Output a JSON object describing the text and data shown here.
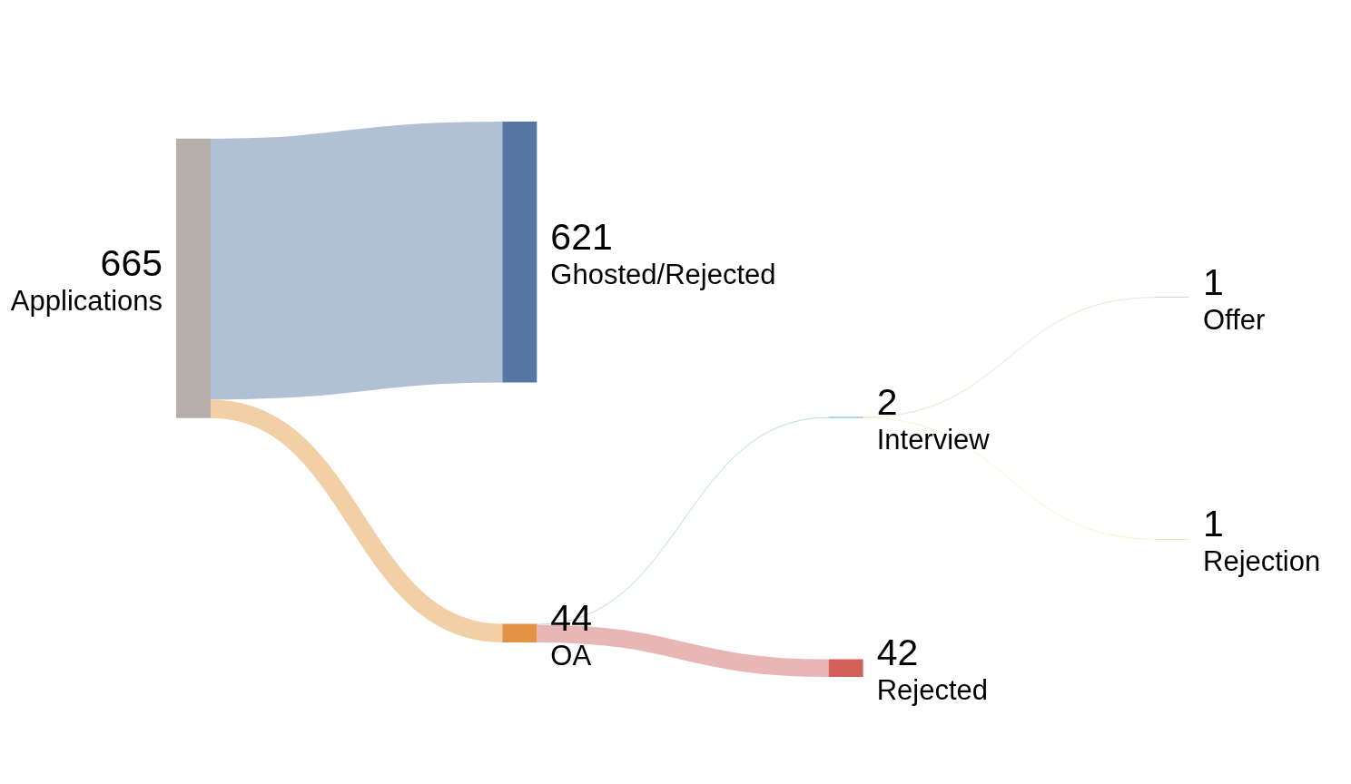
{
  "chart_data": {
    "type": "other",
    "categories": [
      "Applications",
      "Ghosted/Rejected",
      "OA",
      "Interview",
      "Rejected",
      "Offer",
      "Rejection"
    ],
    "values": [
      665,
      null,
      null,
      null,
      null,
      null,
      null
    ],
    "colors": [
      "#b6aea9",
      "#5677a3",
      "#e39343",
      "#5fb3a8",
      "#d4605b",
      "#8dbf7a",
      "#f0cf6a"
    ],
    "data_labels": true,
    "series": [
      {
        "values": [
          null,
          621,
          44,
          null,
          null,
          null,
          null
        ],
        "colors": [
          null,
          "#b1c1d5",
          "#f3cfa6",
          null,
          null,
          null,
          null
        ]
      },
      {
        "values": [
          null,
          null,
          null,
          null,
          null,
          null,
          null
        ]
      },
      {
        "values": [
          null,
          null,
          null,
          2,
          42,
          null,
          null
        ],
        "colors": [
          null,
          null,
          null,
          "#b4dcd6",
          "#e8b6b6",
          null,
          null
        ]
      },
      {
        "values": [
          null,
          null,
          null,
          null,
          null,
          1,
          1
        ],
        "colors": [
          null,
          null,
          null,
          null,
          null,
          "#b0d3a0",
          "#f5e2a0"
        ]
      }
    ]
  }
}
